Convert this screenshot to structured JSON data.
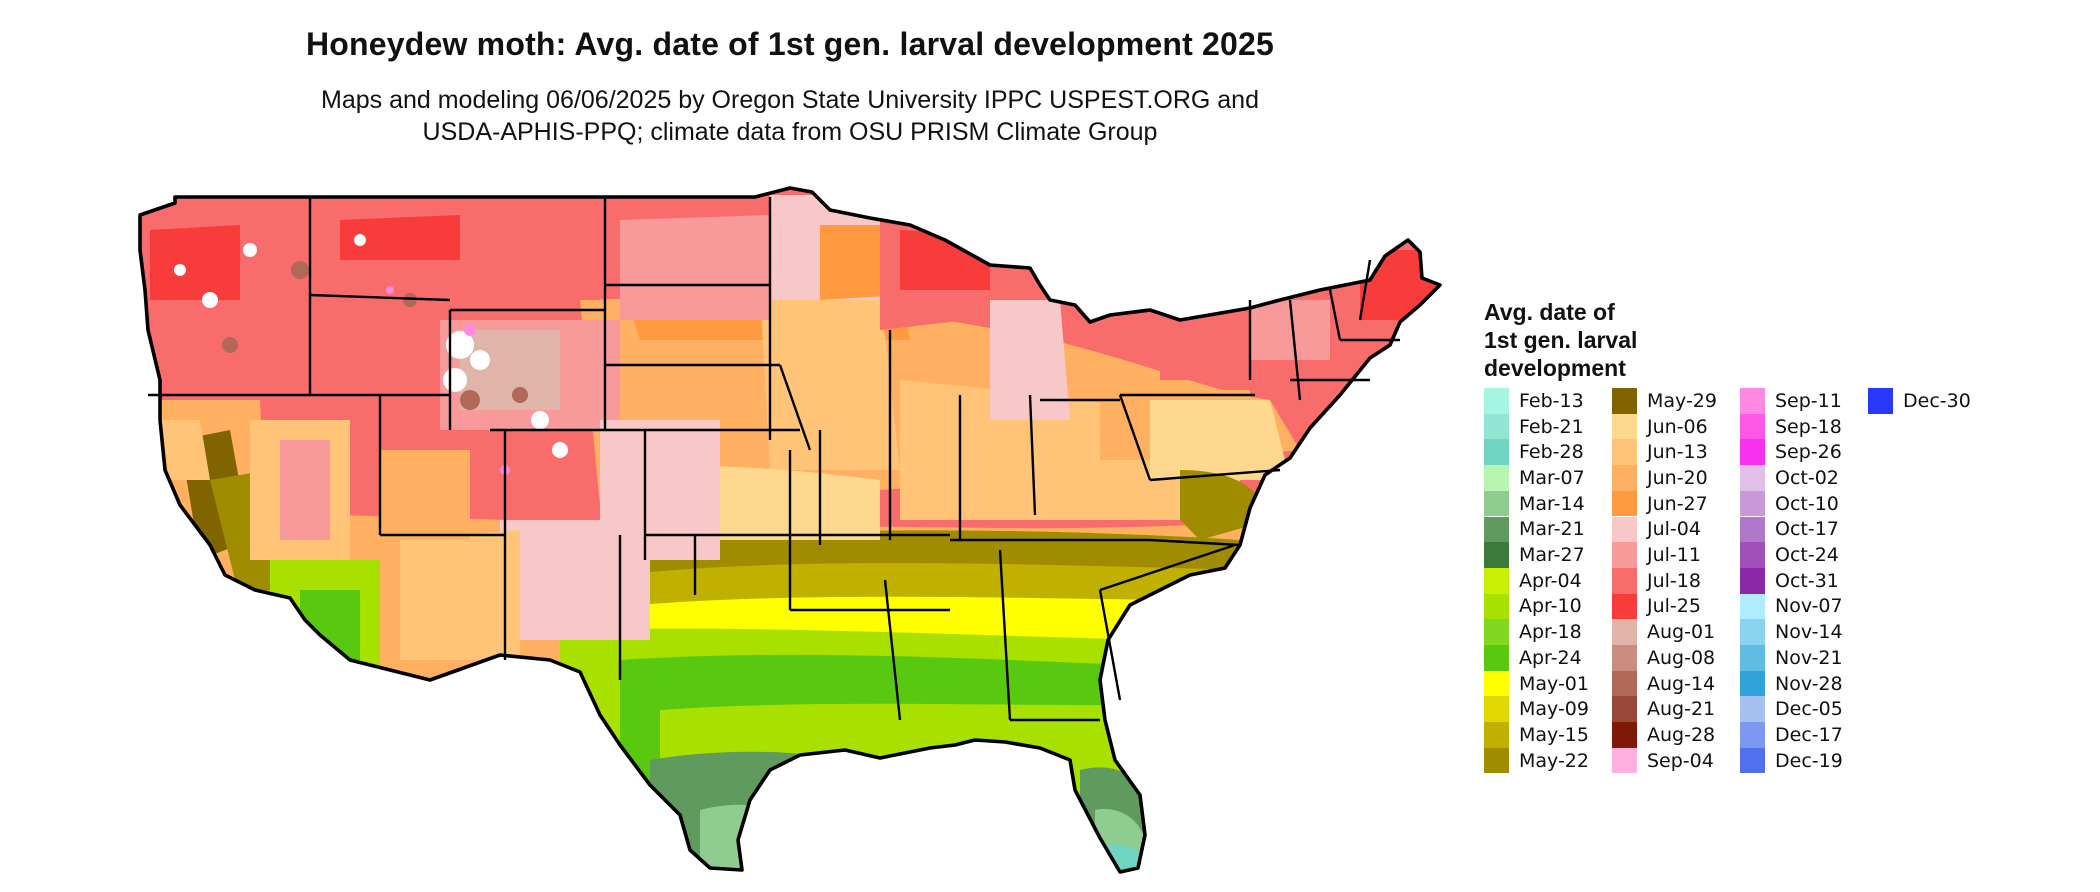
{
  "header": {
    "title": "Honeydew moth: Avg. date of 1st gen. larval development 2025",
    "subtitle_line1": "Maps and modeling 06/06/2025 by Oregon State University IPPC USPEST.ORG and",
    "subtitle_line2": "USDA-APHIS-PPQ; climate data from OSU PRISM Climate Group"
  },
  "legend": {
    "title_lines": [
      "Avg. date of",
      "1st gen. larval",
      "development"
    ],
    "items": [
      {
        "label": "Feb-13",
        "color": "#a6f5e0"
      },
      {
        "label": "Feb-21",
        "color": "#8fe6d2"
      },
      {
        "label": "Feb-28",
        "color": "#6fd4c2"
      },
      {
        "label": "Mar-07",
        "color": "#b8f5b0"
      },
      {
        "label": "Mar-14",
        "color": "#8fcc8f"
      },
      {
        "label": "Mar-21",
        "color": "#5f9a5f"
      },
      {
        "label": "Mar-27",
        "color": "#3c7a3c"
      },
      {
        "label": "Apr-04",
        "color": "#c8f000"
      },
      {
        "label": "Apr-10",
        "color": "#a8e000"
      },
      {
        "label": "Apr-18",
        "color": "#80d820"
      },
      {
        "label": "Apr-24",
        "color": "#58c810"
      },
      {
        "label": "May-01",
        "color": "#ffff00"
      },
      {
        "label": "May-09",
        "color": "#e0d800"
      },
      {
        "label": "May-15",
        "color": "#c0b000"
      },
      {
        "label": "May-22",
        "color": "#a08c00"
      },
      {
        "label": "May-29",
        "color": "#806400"
      },
      {
        "label": "Jun-06",
        "color": "#ffd890"
      },
      {
        "label": "Jun-13",
        "color": "#ffc478"
      },
      {
        "label": "Jun-20",
        "color": "#ffb060"
      },
      {
        "label": "Jun-27",
        "color": "#ff9a40"
      },
      {
        "label": "Jul-04",
        "color": "#f8c8c8"
      },
      {
        "label": "Jul-11",
        "color": "#f89a9a"
      },
      {
        "label": "Jul-18",
        "color": "#f86c6c"
      },
      {
        "label": "Jul-25",
        "color": "#f83c3c"
      },
      {
        "label": "Aug-01",
        "color": "#e0b4a8"
      },
      {
        "label": "Aug-08",
        "color": "#c88c80"
      },
      {
        "label": "Aug-14",
        "color": "#b06858"
      },
      {
        "label": "Aug-21",
        "color": "#984838"
      },
      {
        "label": "Aug-28",
        "color": "#801808"
      },
      {
        "label": "Sep-04",
        "color": "#ffb0e0"
      },
      {
        "label": "Sep-11",
        "color": "#ff88e0"
      },
      {
        "label": "Sep-18",
        "color": "#ff58e8"
      },
      {
        "label": "Sep-26",
        "color": "#f830f0"
      },
      {
        "label": "Oct-02",
        "color": "#e0c0e8"
      },
      {
        "label": "Oct-10",
        "color": "#c898d8"
      },
      {
        "label": "Oct-17",
        "color": "#b078c8"
      },
      {
        "label": "Oct-24",
        "color": "#a050b8"
      },
      {
        "label": "Oct-31",
        "color": "#8a28a8"
      },
      {
        "label": "Nov-07",
        "color": "#b0ecff"
      },
      {
        "label": "Nov-14",
        "color": "#88d4f0"
      },
      {
        "label": "Nov-21",
        "color": "#60bce0"
      },
      {
        "label": "Nov-28",
        "color": "#30a4d8"
      },
      {
        "label": "Dec-05",
        "color": "#a8c0f0"
      },
      {
        "label": "Dec-17",
        "color": "#7c98f0"
      },
      {
        "label": "Dec-19",
        "color": "#5070f0"
      },
      {
        "label": "Dec-30",
        "color": "#2838f8"
      }
    ]
  }
}
